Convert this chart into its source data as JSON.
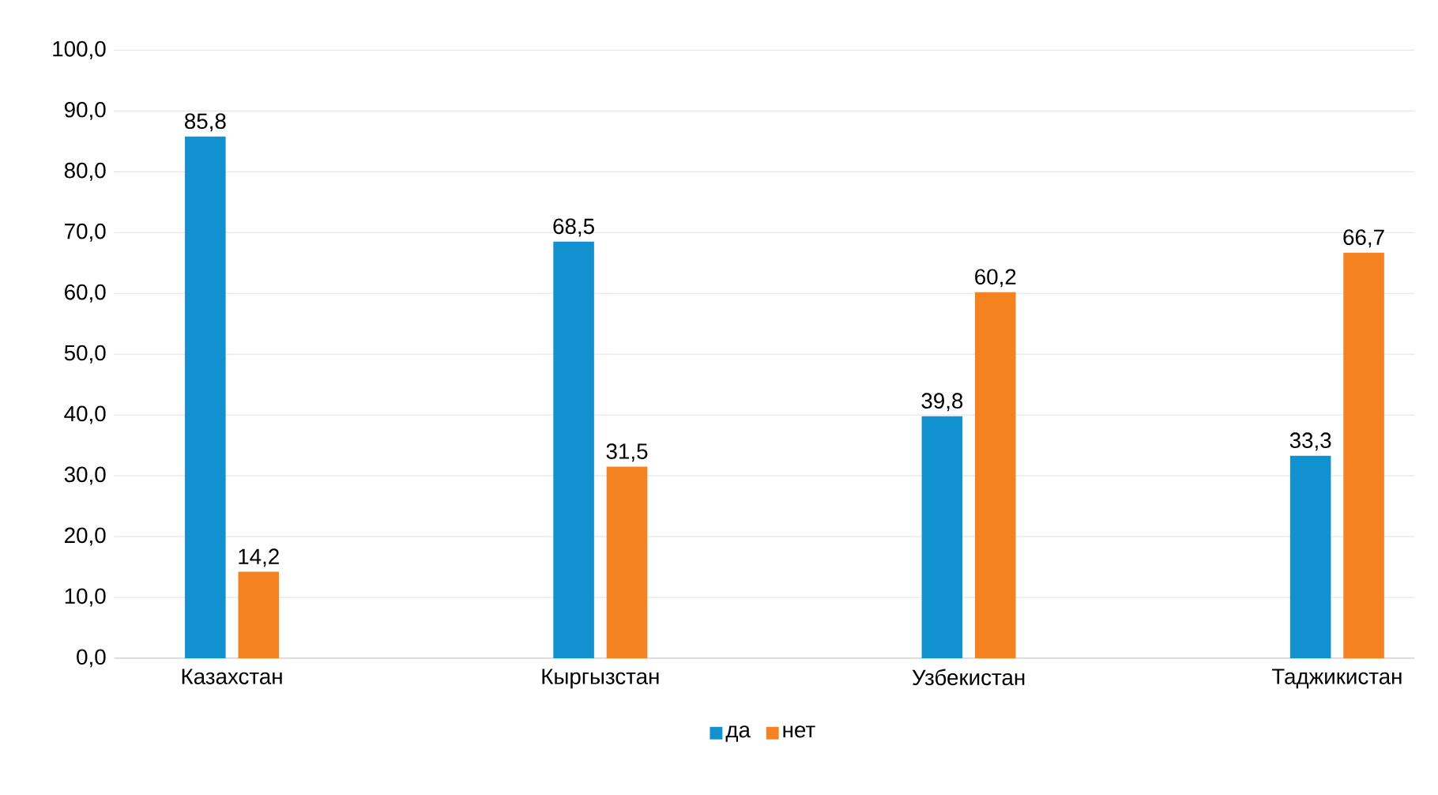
{
  "chart_data": {
    "type": "bar",
    "categories": [
      "Казахстан",
      "Кыргызстан",
      "Узбекистан",
      "Таджикистан"
    ],
    "series": [
      {
        "name": "да",
        "color": "#1191cf",
        "values": [
          85.8,
          68.5,
          39.8,
          33.3
        ],
        "value_labels": [
          "85,8",
          "68,5",
          "39,8",
          "33,3"
        ]
      },
      {
        "name": "нет",
        "color": "#f58220",
        "values": [
          14.2,
          31.5,
          60.2,
          66.7
        ],
        "value_labels": [
          "14,2",
          "31,5",
          "60,2",
          "66,7"
        ]
      }
    ],
    "ylim": [
      0,
      100
    ],
    "yticks": [
      {
        "value": 0,
        "label": "0,0"
      },
      {
        "value": 10,
        "label": "10,0"
      },
      {
        "value": 20,
        "label": "20,0"
      },
      {
        "value": 30,
        "label": "30,0"
      },
      {
        "value": 40,
        "label": "40,0"
      },
      {
        "value": 50,
        "label": "50,0"
      },
      {
        "value": 60,
        "label": "60,0"
      },
      {
        "value": 70,
        "label": "70,0"
      },
      {
        "value": 80,
        "label": "80,0"
      },
      {
        "value": 90,
        "label": "90,0"
      },
      {
        "value": 100,
        "label": "100,0"
      }
    ],
    "grid": "y",
    "legend": "bottom"
  }
}
